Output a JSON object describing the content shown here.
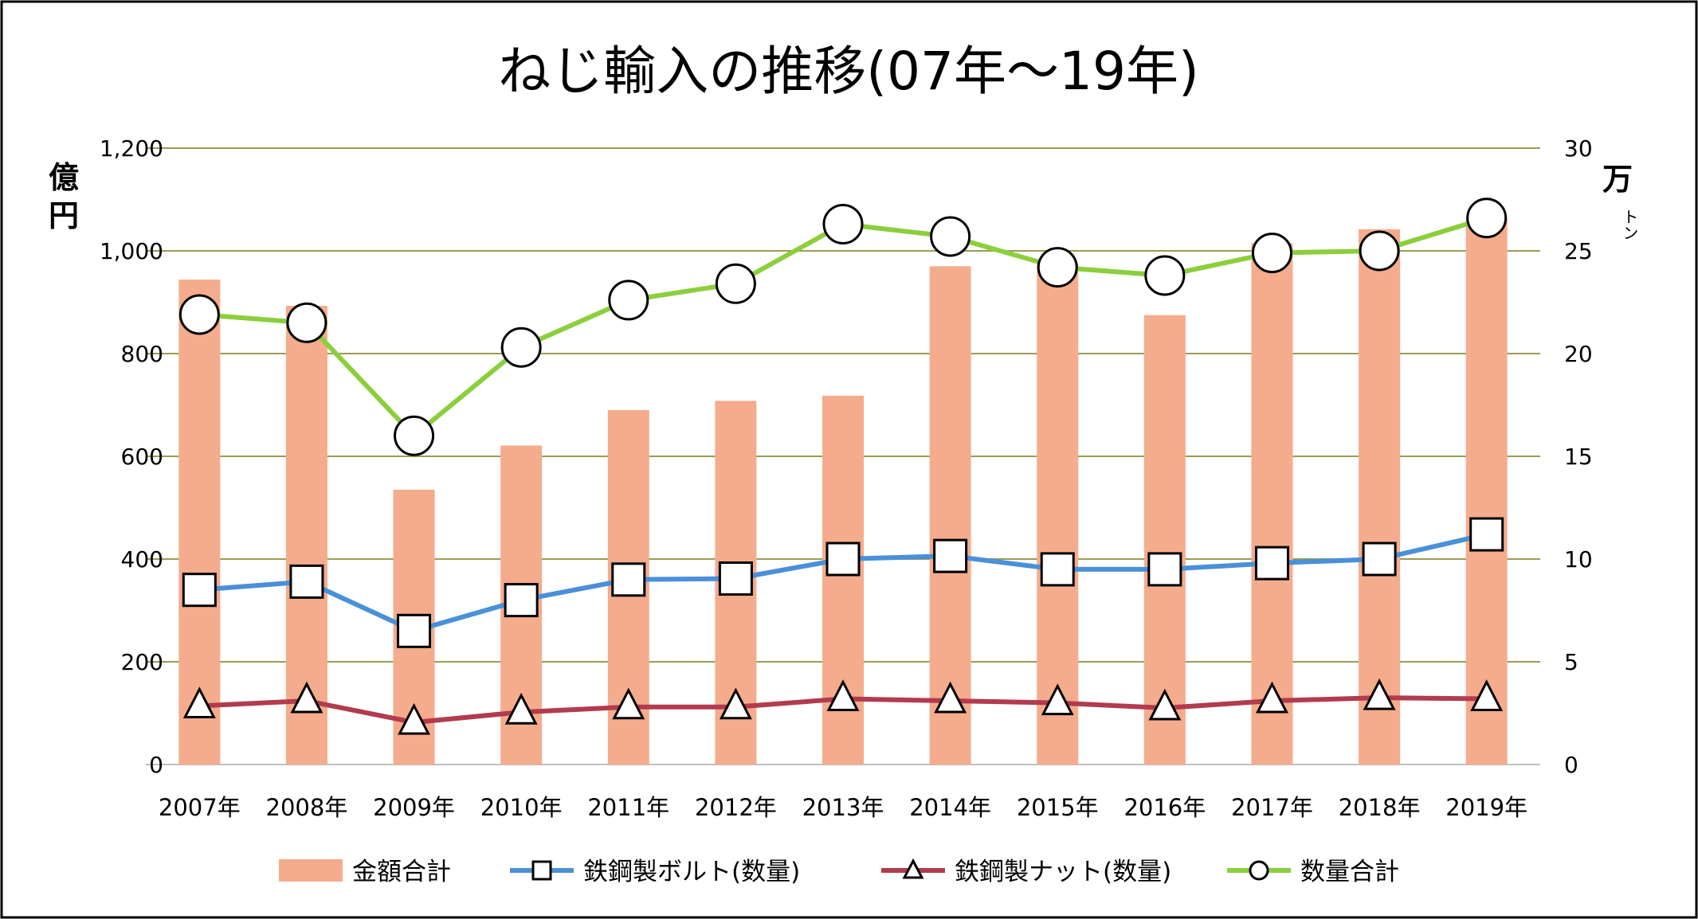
{
  "chart_data": {
    "type": "bar",
    "title": "ねじ輸入の推移(07年〜19年)",
    "y_left_unit": "億円",
    "y_right_unit": "万",
    "y_right_unit_sub": "トン",
    "categories": [
      "2007年",
      "2008年",
      "2009年",
      "2010年",
      "2011年",
      "2012年",
      "2013年",
      "2014年",
      "2015年",
      "2016年",
      "2017年",
      "2018年",
      "2019年"
    ],
    "y_left": {
      "min": 0,
      "max": 1200,
      "step": 200,
      "tick_labels": [
        "0",
        "200",
        "400",
        "600",
        "800",
        "1,000",
        "1,200"
      ]
    },
    "y_right": {
      "min": 0,
      "max": 30,
      "step": 5,
      "tick_labels": [
        "0",
        "5",
        "10",
        "15",
        "20",
        "25",
        "30"
      ]
    },
    "grid": true,
    "legend_position": "bottom",
    "series": [
      {
        "name": "金額合計",
        "type": "bar",
        "axis": "left",
        "color": "#f4ac8c",
        "values": [
          944,
          893,
          535,
          621,
          690,
          708,
          718,
          970,
          975,
          875,
          1015,
          1042,
          1063
        ]
      },
      {
        "name": "鉄鋼製ボルト(数量)",
        "type": "line",
        "axis": "right",
        "color": "#4a90d9",
        "marker": "square",
        "values": [
          8.5,
          8.9,
          6.5,
          8.0,
          9.0,
          9.05,
          10.0,
          10.15,
          9.5,
          9.5,
          9.8,
          10.0,
          11.2
        ]
      },
      {
        "name": "鉄鋼製ナット(数量)",
        "type": "line",
        "axis": "right",
        "color": "#b23b4e",
        "marker": "triangle",
        "values": [
          2.85,
          3.1,
          2.05,
          2.55,
          2.8,
          2.8,
          3.2,
          3.1,
          3.0,
          2.75,
          3.1,
          3.25,
          3.2
        ]
      },
      {
        "name": "数量合計",
        "type": "line",
        "axis": "right",
        "color": "#8bcf3c",
        "marker": "circle",
        "values": [
          21.9,
          21.5,
          16.0,
          20.3,
          22.6,
          23.4,
          26.3,
          25.7,
          24.2,
          23.8,
          24.9,
          25.0,
          26.6
        ]
      }
    ]
  }
}
